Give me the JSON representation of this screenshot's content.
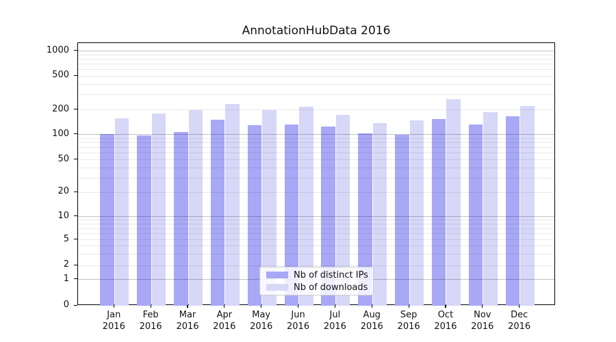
{
  "chart_data": {
    "type": "bar",
    "title": "AnnotationHubData 2016",
    "yscale": "symlog",
    "ylim": [
      0,
      1300
    ],
    "yticks": [
      0,
      1,
      2,
      5,
      10,
      20,
      50,
      100,
      200,
      500,
      1000
    ],
    "grid": true,
    "legend_position": "lower center",
    "categories": [
      "Jan 2016",
      "Feb 2016",
      "Mar 2016",
      "Apr 2016",
      "May 2016",
      "Jun 2016",
      "Jul 2016",
      "Aug 2016",
      "Sep 2016",
      "Oct 2016",
      "Nov 2016",
      "Dec 2016"
    ],
    "series": [
      {
        "name": "Nb of distinct IPs",
        "slug": "distinct-ips",
        "color": "#a8a8f6",
        "values": [
          102,
          98,
          108,
          153,
          130,
          133,
          124,
          104,
          99,
          156,
          132,
          166
        ]
      },
      {
        "name": "Nb of downloads",
        "slug": "downloads",
        "color": "#d7d7f8",
        "values": [
          157,
          180,
          200,
          235,
          200,
          218,
          172,
          139,
          148,
          268,
          189,
          222
        ]
      }
    ]
  }
}
